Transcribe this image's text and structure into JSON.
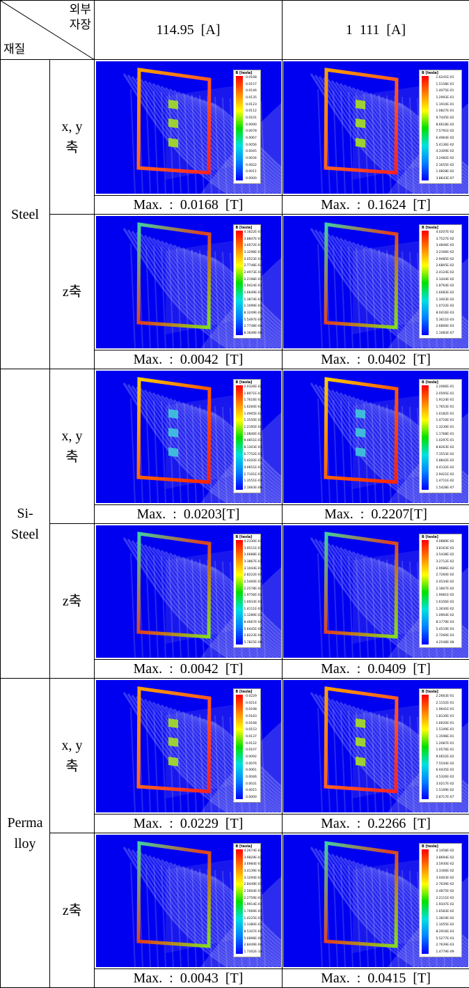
{
  "header": {
    "corner_top": "외부\n자장",
    "corner_bottom": "재질",
    "col1": "114.95  [A]",
    "col2": "1  111  [A]"
  },
  "legend_title": "B [tesla]",
  "materials": [
    {
      "name": "Steel",
      "rows": [
        {
          "axis": "x, y\n축",
          "captions": [
            "Max.  :  0.0168  [T]",
            "Max.  :  0.1624  [T]"
          ]
        },
        {
          "axis": "z축",
          "captions": [
            "Max.  :  0.0042  [T]",
            "Max.  :  0.0402  [T]"
          ]
        }
      ]
    },
    {
      "name": "Si-\nSteel",
      "rows": [
        {
          "axis": "x, y\n축",
          "captions": [
            "Max.  :  0.0203[T]",
            "Max.  :  0.2207[T]"
          ]
        },
        {
          "axis": "z축",
          "captions": [
            "Max.  :  0.0042  [T]",
            "Max.  :  0.0409  [T]"
          ]
        }
      ]
    },
    {
      "name": "Perma\nlloy",
      "rows": [
        {
          "axis": "x, y\n축",
          "captions": [
            "Max.  :  0.0229  [T]",
            "Max.  :  0.2266  [T]"
          ]
        },
        {
          "axis": "z축",
          "captions": [
            "Max.  :  0.0043  [T]",
            "Max.  :  0.0415  [T]"
          ]
        }
      ]
    }
  ],
  "legends": [
    [
      "0.0168",
      "0.0157",
      "0.0146",
      "0.0135",
      "0.0123",
      "0.0112",
      "0.0101",
      "0.0090",
      "0.0078",
      "0.0067",
      "0.0056",
      "0.0045",
      "0.0034",
      "0.0022",
      "0.0011",
      "0.0000"
    ],
    [
      "1.6241E-01",
      "1.5158E-01",
      "1.4075E-01",
      "1.2993E-01",
      "1.1910E-01",
      "1.0827E-01",
      "9.7445E-02",
      "8.6618E-02",
      "7.5791E-02",
      "6.4964E-02",
      "5.4136E-02",
      "4.3309E-02",
      "3.2482E-02",
      "2.1655E-02",
      "1.0828E-02",
      "3.8643E-07"
    ],
    [
      "4.1622E-03",
      "3.8847E-03",
      "3.6072E-03",
      "3.3298E-03",
      "3.0523E-03",
      "2.7748E-03",
      "2.4973E-03",
      "2.2198E-03",
      "1.9424E-03",
      "1.6649E-03",
      "1.3874E-03",
      "1.1099E-03",
      "8.3249E-04",
      "5.5497E-04",
      "2.7748E-04",
      "8.3649E-08"
    ],
    [
      "4.0207E-02",
      "3.7527E-02",
      "3.4846E-02",
      "3.2166E-02",
      "2.9485E-02",
      "2.6805E-02",
      "2.4124E-02",
      "2.1444E-02",
      "1.8764E-02",
      "1.6083E-02",
      "1.3403E-02",
      "1.0722E-02",
      "8.0416E-03",
      "5.3611E-03",
      "2.6806E-03",
      "1.1083E-07"
    ],
    [
      "2.0326E-02",
      "1.8971E-02",
      "1.7616E-02",
      "1.6260E-02",
      "1.4905E-02",
      "1.3550E-02",
      "1.2195E-02",
      "1.0840E-02",
      "9.4851E-03",
      "8.1303E-03",
      "6.7752E-03",
      "5.4202E-03",
      "4.0651E-03",
      "2.7101E-03",
      "1.3551E-03",
      "2.1663E-08"
    ],
    [
      "2.2066E-01",
      "2.0595E-01",
      "1.9124E-01",
      "1.7653E-01",
      "1.6182E-01",
      "1.4710E-01",
      "1.3239E-01",
      "1.1768E-01",
      "1.0297E-01",
      "8.8263E-02",
      "7.3553E-02",
      "5.8842E-02",
      "4.4132E-02",
      "2.9421E-02",
      "1.4711E-02",
      "1.5428E-07"
    ],
    [
      "4.2330E-03",
      "3.9511E-03",
      "3.6688E-03",
      "3.3867E-03",
      "3.1044E-03",
      "2.8222E-03",
      "2.5400E-03",
      "2.2578E-03",
      "1.9756E-03",
      "1.6933E-03",
      "1.4111E-03",
      "1.1289E-03",
      "8.4667E-04",
      "5.6445E-04",
      "2.8223E-04",
      "5.7825E-08"
    ],
    [
      "4.0889E-02",
      "3.8163E-02",
      "3.5438E-02",
      "3.2712E-02",
      "2.9986E-02",
      "2.7260E-02",
      "2.4534E-02",
      "2.1807E-02",
      "1.9081E-02",
      "1.6356E-02",
      "1.3630E-02",
      "1.0904E-02",
      "8.1779E-03",
      "5.4519E-03",
      "2.7260E-03",
      "4.2548E-08"
    ],
    [
      "0.0229",
      "0.0214",
      "0.0198",
      "0.0183",
      "0.0168",
      "0.0153",
      "0.0137",
      "0.0122",
      "0.0107",
      "0.0092",
      "0.0076",
      "0.0061",
      "0.0046",
      "0.0031",
      "0.0015",
      "0.0000"
    ],
    [
      "2.2663E-01",
      "2.1152E-01",
      "1.9641E-01",
      "1.8130E-01",
      "1.6620E-01",
      "1.5109E-01",
      "1.3598E-01",
      "1.2087E-01",
      "1.0576E-01",
      "9.0652E-02",
      "7.5544E-02",
      "6.0435E-02",
      "4.5326E-02",
      "3.0217E-02",
      "1.5109E-02",
      "2.8717E-07"
    ],
    [
      "4.2674E-03",
      "3.9829E-03",
      "3.6984E-03",
      "3.4139E-03",
      "3.1294E-03",
      "2.8449E-03",
      "2.5604E-03",
      "2.2759E-03",
      "1.9914E-03",
      "1.7069E-03",
      "1.4225E-03",
      "1.1380E-03",
      "8.5347E-04",
      "5.6898E-04",
      "2.8449E-04",
      "1.7302E-10"
    ],
    [
      "4.1458E-02",
      "3.8694E-02",
      "3.5930E-02",
      "3.3166E-02",
      "3.0403E-02",
      "2.7639E-02",
      "2.4875E-02",
      "2.2111E-02",
      "1.9347E-02",
      "1.6583E-02",
      "1.3819E-02",
      "1.1055E-02",
      "8.2916E-03",
      "5.5277E-03",
      "2.7639E-03",
      "1.4779E-09"
    ]
  ]
}
